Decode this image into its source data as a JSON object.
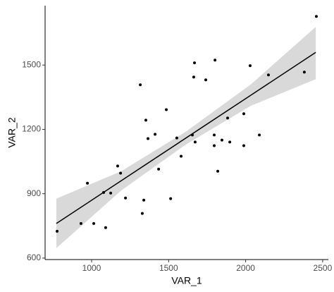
{
  "chart_data": {
    "type": "scatter",
    "x_label": "VAR_1",
    "y_label": "VAR_2",
    "x": [
      776,
      931,
      973,
      1014,
      1078,
      1091,
      1124,
      1169,
      1188,
      1220,
      1316,
      1329,
      1339,
      1352,
      1366,
      1412,
      1435,
      1485,
      1513,
      1553,
      1581,
      1654,
      1663,
      1672,
      1668,
      1741,
      1801,
      1796,
      1796,
      1819,
      1846,
      1883,
      1897,
      1988,
      1988,
      2029,
      2089,
      2148,
      2381,
      2459
    ],
    "values": [
      725,
      761,
      949,
      761,
      906,
      742,
      903,
      1029,
      996,
      880,
      1408,
      808,
      870,
      1243,
      1157,
      1177,
      1015,
      1292,
      877,
      1160,
      1075,
      1174,
      1444,
      1141,
      1510,
      1431,
      1523,
      1174,
      1124,
      1005,
      1150,
      1253,
      1141,
      1124,
      1273,
      1497,
      1174,
      1454,
      1467,
      1727
    ],
    "color": "#000000",
    "fit": {
      "x": [
        771,
        2455
      ],
      "y": [
        761,
        1559
      ],
      "color": "#000000"
    },
    "band": {
      "x": [
        771,
        1192,
        1613,
        2034,
        2455
      ],
      "lower": [
        646,
        915,
        1130,
        1310,
        1434
      ],
      "upper": [
        877,
        1005,
        1190,
        1410,
        1678
      ],
      "color": "#d9d9d9"
    },
    "xlim": [
      698,
      2537
    ],
    "ylim": [
      593,
      1777
    ],
    "xticks": [
      1000,
      1500,
      2000,
      2500
    ],
    "yticks": [
      600,
      900,
      1200,
      1500
    ],
    "grid": false
  }
}
